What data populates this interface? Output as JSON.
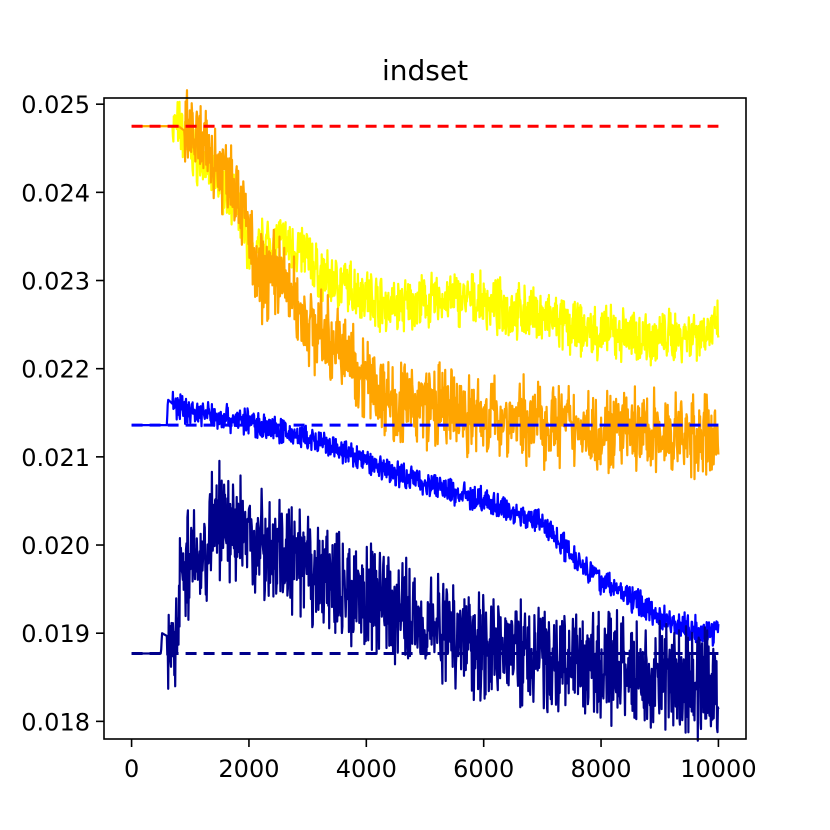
{
  "chart_data": {
    "type": "line",
    "title": "indset",
    "xlabel": "",
    "ylabel": "",
    "xlim": [
      -470,
      10470
    ],
    "ylim": [
      0.0178,
      0.02507
    ],
    "grid": false,
    "legend": "none",
    "x_ticks": [
      0,
      2000,
      4000,
      6000,
      8000,
      10000
    ],
    "x_tick_labels": [
      "0",
      "2000",
      "4000",
      "6000",
      "8000",
      "10000"
    ],
    "y_ticks": [
      0.018,
      0.019,
      0.02,
      0.021,
      0.022,
      0.023,
      0.024,
      0.025
    ],
    "y_tick_labels": [
      "0.018",
      "0.019",
      "0.020",
      "0.021",
      "0.022",
      "0.023",
      "0.024",
      "0.025"
    ],
    "reference_lines": [
      {
        "color": "#ff0000",
        "style": "dashed",
        "y": 0.02475
      },
      {
        "color": "#0000ff",
        "style": "dashed",
        "y": 0.02136
      },
      {
        "color": "#00008b",
        "style": "dashed",
        "y": 0.01877
      }
    ],
    "series": [
      {
        "color": "#ffff00",
        "noise": 0.00045,
        "points": [
          [
            0,
            0.02475
          ],
          [
            600,
            0.02475
          ],
          [
            800,
            0.02475
          ],
          [
            1000,
            0.0245
          ],
          [
            1500,
            0.0241
          ],
          [
            1700,
            0.024
          ],
          [
            1800,
            0.0238
          ],
          [
            2000,
            0.0234
          ],
          [
            2100,
            0.0232
          ],
          [
            2200,
            0.0234
          ],
          [
            2500,
            0.02345
          ],
          [
            3000,
            0.0233
          ],
          [
            3200,
            0.02305
          ],
          [
            3600,
            0.02295
          ],
          [
            4000,
            0.02285
          ],
          [
            4400,
            0.0227
          ],
          [
            5000,
            0.02275
          ],
          [
            5500,
            0.0228
          ],
          [
            6000,
            0.02275
          ],
          [
            6500,
            0.02265
          ],
          [
            7000,
            0.0226
          ],
          [
            7500,
            0.02245
          ],
          [
            8000,
            0.0224
          ],
          [
            9000,
            0.02235
          ],
          [
            10000,
            0.02245
          ]
        ]
      },
      {
        "color": "#ffa500",
        "noise": 0.0007,
        "points": [
          [
            0,
            0.02475
          ],
          [
            800,
            0.02475
          ],
          [
            1000,
            0.02465
          ],
          [
            1500,
            0.0243
          ],
          [
            1700,
            0.0242
          ],
          [
            1800,
            0.024
          ],
          [
            2000,
            0.0236
          ],
          [
            2100,
            0.023
          ],
          [
            2500,
            0.0231
          ],
          [
            3000,
            0.0225
          ],
          [
            3500,
            0.02225
          ],
          [
            4000,
            0.0219
          ],
          [
            4500,
            0.0216
          ],
          [
            5000,
            0.0216
          ],
          [
            5500,
            0.0215
          ],
          [
            6000,
            0.02145
          ],
          [
            7000,
            0.0214
          ],
          [
            8000,
            0.0213
          ],
          [
            9000,
            0.02125
          ],
          [
            10000,
            0.0212
          ]
        ]
      },
      {
        "color": "#0000ff",
        "noise": 0.00022,
        "points": [
          [
            0,
            0.02136
          ],
          [
            600,
            0.02136
          ],
          [
            620,
            0.02165
          ],
          [
            700,
            0.0216
          ],
          [
            1000,
            0.02152
          ],
          [
            2000,
            0.0214
          ],
          [
            3000,
            0.0212
          ],
          [
            4000,
            0.02095
          ],
          [
            5000,
            0.0207
          ],
          [
            6000,
            0.0205
          ],
          [
            7000,
            0.02025
          ],
          [
            7500,
            0.0199
          ],
          [
            8000,
            0.0196
          ],
          [
            9000,
            0.0192
          ],
          [
            9500,
            0.01905
          ],
          [
            10000,
            0.019
          ]
        ]
      },
      {
        "color": "#00008b",
        "noise": 0.0009,
        "points": [
          [
            0,
            0.01877
          ],
          [
            500,
            0.01877
          ],
          [
            520,
            0.019
          ],
          [
            650,
            0.01895
          ],
          [
            800,
            0.01895
          ],
          [
            820,
            0.01975
          ],
          [
            1300,
            0.0199
          ],
          [
            1330,
            0.0203
          ],
          [
            2000,
            0.0201
          ],
          [
            3000,
            0.0197
          ],
          [
            4000,
            0.0194
          ],
          [
            5000,
            0.01915
          ],
          [
            6000,
            0.0189
          ],
          [
            7000,
            0.0187
          ],
          [
            8000,
            0.0186
          ],
          [
            9000,
            0.0185
          ],
          [
            10000,
            0.0184
          ]
        ]
      }
    ]
  }
}
